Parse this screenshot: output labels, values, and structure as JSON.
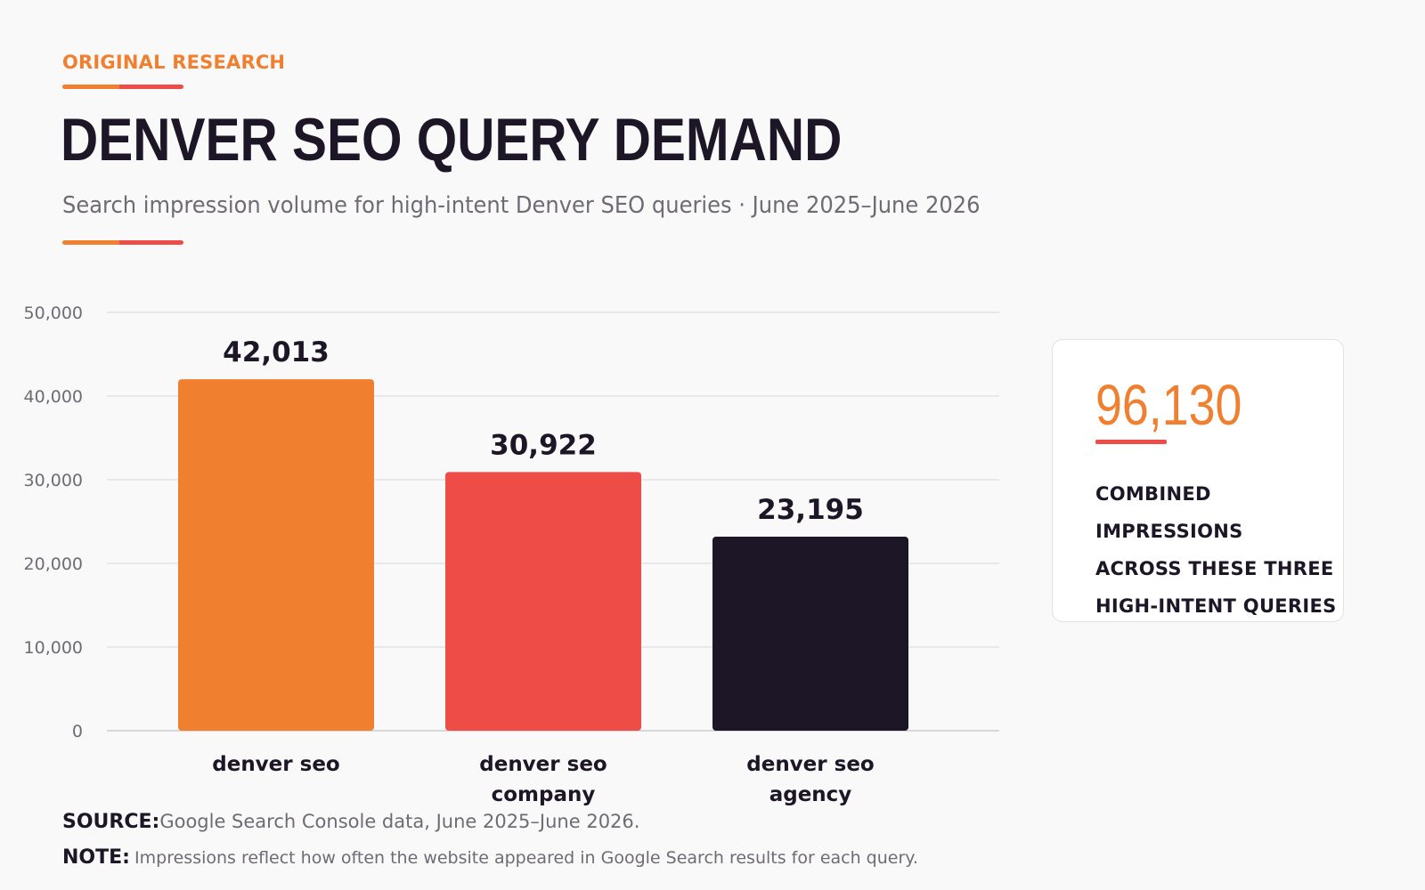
{
  "header": {
    "eyebrow": "ORIGINAL RESEARCH",
    "title": "DENVER SEO QUERY DEMAND",
    "subtitle": "Search impression volume for high-intent Denver SEO queries · June 2025–June 2026"
  },
  "colors": {
    "orange": "#f08030",
    "red": "#ee4c47",
    "dark": "#1c1626",
    "grid": "#e2e2e2",
    "muted": "#6f6b75"
  },
  "chart_data": {
    "type": "bar",
    "title": "DENVER SEO QUERY DEMAND",
    "subtitle": "Search impression volume for high-intent Denver SEO queries · June 2025–June 2026",
    "categories": [
      "denver seo",
      "denver seo company",
      "denver seo agency"
    ],
    "category_lines": [
      [
        "denver seo"
      ],
      [
        "denver seo",
        "company"
      ],
      [
        "denver seo",
        "agency"
      ]
    ],
    "values": [
      42013,
      30922,
      23195
    ],
    "value_labels": [
      "42,013",
      "30,922",
      "23,195"
    ],
    "bar_colors": [
      "#f08030",
      "#ee4c47",
      "#1c1626"
    ],
    "xlabel": "",
    "ylabel": "",
    "ylim": [
      0,
      50000
    ],
    "yticks": [
      0,
      10000,
      20000,
      30000,
      40000,
      50000
    ],
    "ytick_labels": [
      "0",
      "10,000",
      "20,000",
      "30,000",
      "40,000",
      "50,000"
    ],
    "grid": true,
    "legend": "none"
  },
  "callout": {
    "value": "96,130",
    "text": "COMBINED IMPRESSIONS\nACROSS THESE THREE\nHIGH-INTENT QUERIES"
  },
  "footer": {
    "source_label": "SOURCE:",
    "source_text": "Google Search Console data, June 2025–June 2026.",
    "note_label": "NOTE:",
    "note_text": "Impressions reflect how often the website appeared in Google Search results for each query."
  }
}
